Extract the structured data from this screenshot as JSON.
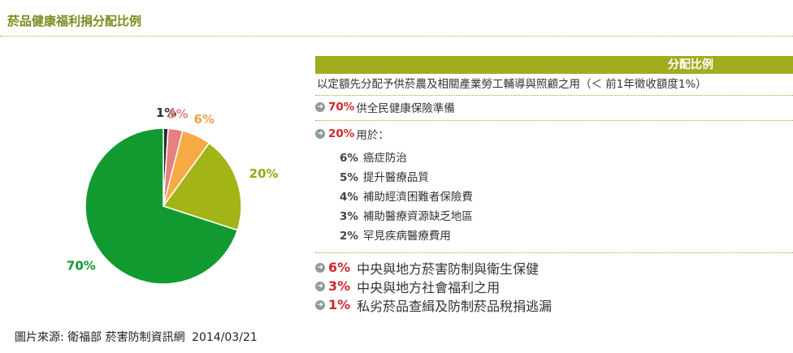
{
  "page": {
    "title": "菸品健康福利捐分配比例",
    "source": "圖片來源: 衛福部 菸害防制資訊網",
    "date": "2014/03/21"
  },
  "panel": {
    "header": "分配比例",
    "intro": "以定額先分配予供菸農及相關產業勞工輔導與照顧之用（＜ 前1年徵收額度1%）",
    "main_items": [
      {
        "pct": "70%",
        "text": "供全民健康保險準備"
      },
      {
        "pct": "20%",
        "text": "用於："
      }
    ],
    "sub_items": [
      {
        "pct": "6%",
        "text": "癌症防治"
      },
      {
        "pct": "5%",
        "text": "提升醫療品質"
      },
      {
        "pct": "4%",
        "text": "補助經濟困難者保險費"
      },
      {
        "pct": "3%",
        "text": "補助醫療資源缺乏地區"
      },
      {
        "pct": "2%",
        "text": "罕見疾病醫療費用"
      }
    ],
    "other_items": [
      {
        "pct": "6%",
        "text": "中央與地方菸害防制與衛生保健"
      },
      {
        "pct": "3%",
        "text": "中央與地方社會福利之用"
      },
      {
        "pct": "1%",
        "text": "私劣菸品查緝及防制菸品稅捐逃漏"
      }
    ]
  },
  "colors": {
    "accent": "#a3ac1f",
    "title": "#7a8a1c",
    "highlight": "#d0262b"
  },
  "chart_data": {
    "type": "pie",
    "title": "",
    "slices": [
      {
        "label": "1%",
        "value": 1,
        "color": "#2b2b2b"
      },
      {
        "label": "3%",
        "value": 3,
        "color": "#e8807f"
      },
      {
        "label": "6%",
        "value": 6,
        "color": "#f5aa45"
      },
      {
        "label": "20%",
        "value": 20,
        "color": "#a3b417"
      },
      {
        "label": "70%",
        "value": 70,
        "color": "#109a30"
      }
    ],
    "label_colors": [
      "#333333",
      "#e8807f",
      "#f0a040",
      "#9aaa10",
      "#109a30"
    ]
  }
}
